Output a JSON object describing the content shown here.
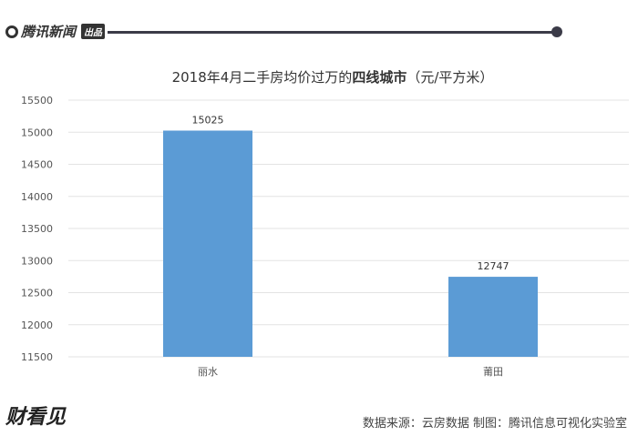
{
  "header": {
    "brand": "腾讯新闻",
    "badge": "出品"
  },
  "footer": {
    "logo_text": "财看见",
    "source": "数据来源：云房数据 制图：腾讯信息可视化实验室"
  },
  "chart_data": {
    "type": "bar",
    "title": "2018年4月二手房均价过万的",
    "title_bold": "四线城市",
    "title_unit": "（元/平方米）",
    "categories": [
      "丽水",
      "莆田"
    ],
    "values": [
      15025,
      12747
    ],
    "ylim": [
      11500,
      15500
    ],
    "yticks": [
      11500,
      12000,
      12500,
      13000,
      13500,
      14000,
      14500,
      15000,
      15500
    ],
    "grid": true,
    "bar_color": "#5b9bd5",
    "data_labels": true
  }
}
